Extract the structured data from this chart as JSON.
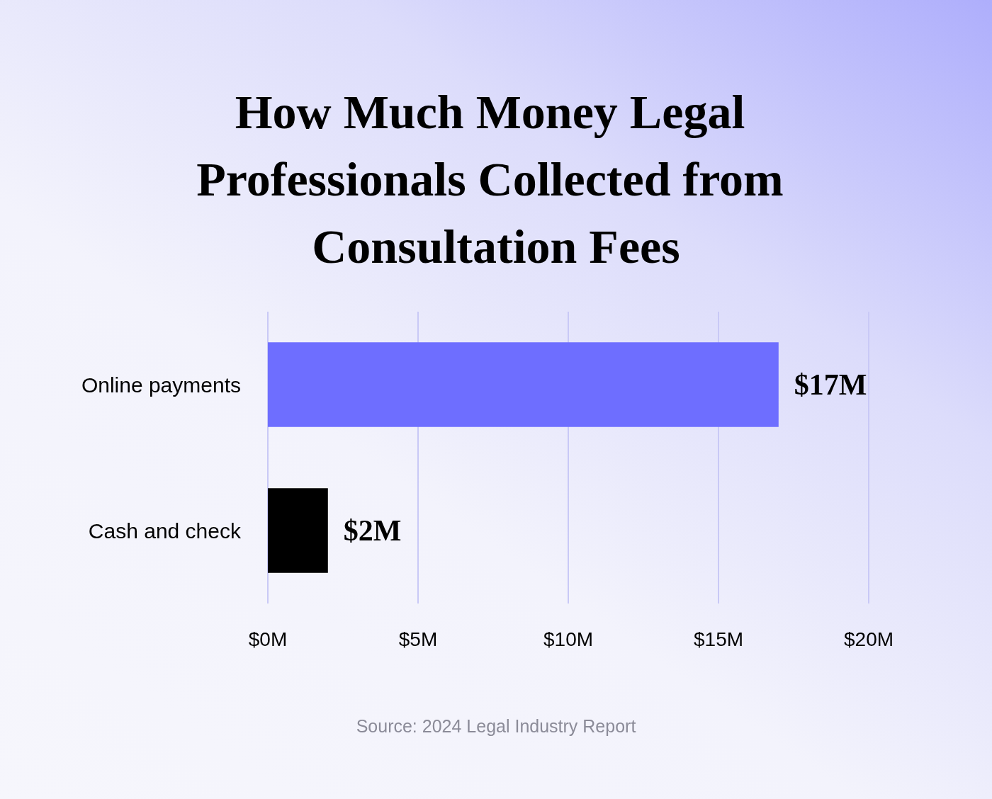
{
  "chart_data": {
    "type": "bar",
    "orientation": "horizontal",
    "title": "How Much Money Legal Professionals Collected from Consultation Fees",
    "categories": [
      "Online payments",
      "Cash and check"
    ],
    "values": [
      17,
      2
    ],
    "colors": [
      "#6e6eff",
      "#000000"
    ],
    "value_labels": [
      "$17M",
      "$2M"
    ],
    "xlim": [
      0,
      20
    ],
    "xticks": [
      {
        "value": 0,
        "label": "$0M"
      },
      {
        "value": 5,
        "label": "$5M"
      },
      {
        "value": 10,
        "label": "$10M"
      },
      {
        "value": 15,
        "label": "$15M"
      },
      {
        "value": 20,
        "label": "$20M"
      }
    ],
    "grid": "x",
    "annotations": [
      "Source: 2024 Legal Industry Report"
    ]
  }
}
